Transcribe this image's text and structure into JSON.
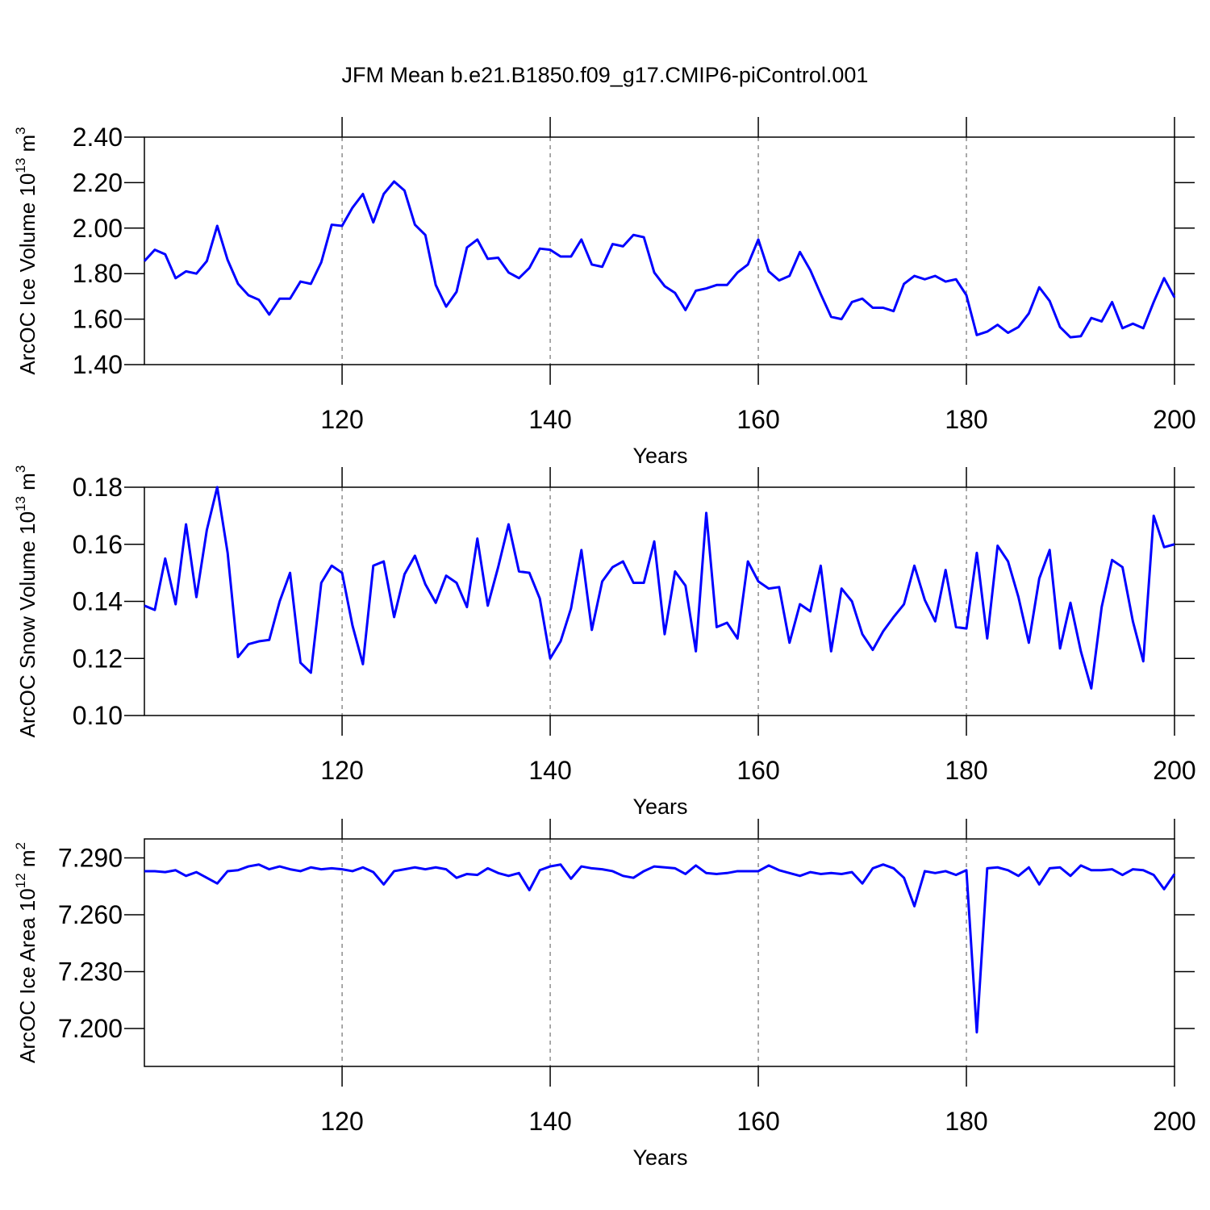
{
  "title": "JFM Mean b.e21.B1850.f09_g17.CMIP6-piControl.001",
  "chart_data": [
    {
      "type": "line",
      "xlabel": "Years",
      "ylabel": [
        "ArcOC Ice Volume 10",
        "13",
        " m",
        "3"
      ],
      "color": "#0000ff",
      "xgrid": true,
      "xlim": [
        101,
        200
      ],
      "xticks": [
        120,
        140,
        160,
        180,
        200
      ],
      "ylim": [
        1.4,
        2.4
      ],
      "yticks": [
        {
          "value": 1.4,
          "label": "1.40"
        },
        {
          "value": 1.6,
          "label": "1.60"
        },
        {
          "value": 1.8,
          "label": "1.80"
        },
        {
          "value": 2.0,
          "label": "2.00"
        },
        {
          "value": 2.2,
          "label": "2.20"
        },
        {
          "value": 2.4,
          "label": "2.40"
        }
      ],
      "x": [
        101,
        102,
        103,
        104,
        105,
        106,
        107,
        108,
        109,
        110,
        111,
        112,
        113,
        114,
        115,
        116,
        117,
        118,
        119,
        120,
        121,
        122,
        123,
        124,
        125,
        126,
        127,
        128,
        129,
        130,
        131,
        132,
        133,
        134,
        135,
        136,
        137,
        138,
        139,
        140,
        141,
        142,
        143,
        144,
        145,
        146,
        147,
        148,
        149,
        150,
        151,
        152,
        153,
        154,
        155,
        156,
        157,
        158,
        159,
        160,
        161,
        162,
        163,
        164,
        165,
        166,
        167,
        168,
        169,
        170,
        171,
        172,
        173,
        174,
        175,
        176,
        177,
        178,
        179,
        180,
        181,
        182,
        183,
        184,
        185,
        186,
        187,
        188,
        189,
        190,
        191,
        192,
        193,
        194,
        195,
        196,
        197,
        198,
        199,
        200
      ],
      "values": [
        1.855,
        1.905,
        1.885,
        1.78,
        1.81,
        1.8,
        1.855,
        2.01,
        1.86,
        1.755,
        1.705,
        1.685,
        1.62,
        1.69,
        1.69,
        1.765,
        1.755,
        1.85,
        2.015,
        2.01,
        2.09,
        2.15,
        2.025,
        2.15,
        2.205,
        2.165,
        2.015,
        1.97,
        1.75,
        1.655,
        1.72,
        1.915,
        1.95,
        1.865,
        1.87,
        1.805,
        1.78,
        1.825,
        1.91,
        1.905,
        1.875,
        1.875,
        1.95,
        1.84,
        1.83,
        1.93,
        1.92,
        1.97,
        1.96,
        1.805,
        1.745,
        1.715,
        1.64,
        1.725,
        1.735,
        1.75,
        1.75,
        1.805,
        1.84,
        1.95,
        1.81,
        1.77,
        1.79,
        1.895,
        1.815,
        1.71,
        1.61,
        1.6,
        1.675,
        1.69,
        1.65,
        1.65,
        1.635,
        1.755,
        1.79,
        1.775,
        1.79,
        1.765,
        1.775,
        1.705,
        1.53,
        1.545,
        1.575,
        1.54,
        1.565,
        1.625,
        1.74,
        1.68,
        1.565,
        1.52,
        1.525,
        1.605,
        1.59,
        1.675,
        1.56,
        1.58,
        1.56,
        1.675,
        1.78,
        1.695
      ]
    },
    {
      "type": "line",
      "xlabel": "Years",
      "ylabel": [
        "ArcOC Snow Volume 10",
        "13",
        " m",
        "3"
      ],
      "color": "#0000ff",
      "xgrid": true,
      "xlim": [
        101,
        200
      ],
      "xticks": [
        120,
        140,
        160,
        180,
        200
      ],
      "ylim": [
        0.1,
        0.18
      ],
      "yticks": [
        {
          "value": 0.1,
          "label": "0.10"
        },
        0.12,
        0.14,
        0.16,
        0.18
      ],
      "x": [
        101,
        102,
        103,
        104,
        105,
        106,
        107,
        108,
        109,
        110,
        111,
        112,
        113,
        114,
        115,
        116,
        117,
        118,
        119,
        120,
        121,
        122,
        123,
        124,
        125,
        126,
        127,
        128,
        129,
        130,
        131,
        132,
        133,
        134,
        135,
        136,
        137,
        138,
        139,
        140,
        141,
        142,
        143,
        144,
        145,
        146,
        147,
        148,
        149,
        150,
        151,
        152,
        153,
        154,
        155,
        156,
        157,
        158,
        159,
        160,
        161,
        162,
        163,
        164,
        165,
        166,
        167,
        168,
        169,
        170,
        171,
        172,
        173,
        174,
        175,
        176,
        177,
        178,
        179,
        180,
        181,
        182,
        183,
        184,
        185,
        186,
        187,
        188,
        189,
        190,
        191,
        192,
        193,
        194,
        195,
        196,
        197,
        198,
        199,
        200
      ],
      "values": [
        0.1385,
        0.137,
        0.155,
        0.139,
        0.167,
        0.1415,
        0.165,
        0.18,
        0.157,
        0.1205,
        0.125,
        0.126,
        0.1265,
        0.14,
        0.15,
        0.1185,
        0.115,
        0.1465,
        0.1525,
        0.15,
        0.1315,
        0.118,
        0.1525,
        0.154,
        0.1345,
        0.1495,
        0.156,
        0.146,
        0.1395,
        0.149,
        0.1465,
        0.138,
        0.162,
        0.1385,
        0.152,
        0.167,
        0.1505,
        0.15,
        0.141,
        0.12,
        0.126,
        0.1375,
        0.158,
        0.13,
        0.147,
        0.152,
        0.154,
        0.1465,
        0.1465,
        0.161,
        0.1285,
        0.1505,
        0.1455,
        0.1225,
        0.171,
        0.131,
        0.1325,
        0.127,
        0.154,
        0.147,
        0.1445,
        0.145,
        0.1255,
        0.139,
        0.1365,
        0.1525,
        0.1225,
        0.1445,
        0.14,
        0.1285,
        0.123,
        0.1295,
        0.1345,
        0.139,
        0.1525,
        0.1405,
        0.133,
        0.151,
        0.131,
        0.1305,
        0.157,
        0.127,
        0.1595,
        0.154,
        0.1415,
        0.1255,
        0.148,
        0.158,
        0.1235,
        0.1395,
        0.1225,
        0.1095,
        0.138,
        0.1545,
        0.152,
        0.133,
        0.119,
        0.17,
        0.159,
        0.16
      ]
    },
    {
      "type": "line",
      "xlabel": "Years",
      "ylabel": [
        "ArcOC Ice Area 10",
        "12",
        " m",
        "2"
      ],
      "color": "#0000ff",
      "xgrid": true,
      "xlim": [
        101,
        200
      ],
      "xticks": [
        120,
        140,
        160,
        180,
        200
      ],
      "ylim": [
        7.18,
        7.3
      ],
      "yticks": [
        {
          "value": 7.2,
          "label": "7.200"
        },
        {
          "value": 7.23,
          "label": "7.230"
        },
        {
          "value": 7.26,
          "label": "7.260"
        },
        {
          "value": 7.29,
          "label": "7.290"
        }
      ],
      "x": [
        101,
        102,
        103,
        104,
        105,
        106,
        107,
        108,
        109,
        110,
        111,
        112,
        113,
        114,
        115,
        116,
        117,
        118,
        119,
        120,
        121,
        122,
        123,
        124,
        125,
        126,
        127,
        128,
        129,
        130,
        131,
        132,
        133,
        134,
        135,
        136,
        137,
        138,
        139,
        140,
        141,
        142,
        143,
        144,
        145,
        146,
        147,
        148,
        149,
        150,
        151,
        152,
        153,
        154,
        155,
        156,
        157,
        158,
        159,
        160,
        161,
        162,
        163,
        164,
        165,
        166,
        167,
        168,
        169,
        170,
        171,
        172,
        173,
        174,
        175,
        176,
        177,
        178,
        179,
        180,
        181,
        182,
        183,
        184,
        185,
        186,
        187,
        188,
        189,
        190,
        191,
        192,
        193,
        194,
        195,
        196,
        197,
        198,
        199,
        200
      ],
      "values": [
        7.283,
        7.283,
        7.2825,
        7.2835,
        7.2805,
        7.2825,
        7.2795,
        7.2765,
        7.283,
        7.2835,
        7.2855,
        7.2865,
        7.284,
        7.2855,
        7.284,
        7.283,
        7.285,
        7.284,
        7.2845,
        7.284,
        7.283,
        7.285,
        7.2825,
        7.276,
        7.283,
        7.284,
        7.285,
        7.284,
        7.285,
        7.284,
        7.2795,
        7.2815,
        7.281,
        7.2845,
        7.282,
        7.2805,
        7.282,
        7.273,
        7.2835,
        7.2855,
        7.2865,
        7.279,
        7.2855,
        7.2845,
        7.284,
        7.283,
        7.2805,
        7.2795,
        7.283,
        7.2855,
        7.285,
        7.2845,
        7.2815,
        7.286,
        7.282,
        7.2815,
        7.282,
        7.283,
        7.283,
        7.283,
        7.286,
        7.2835,
        7.282,
        7.2805,
        7.2825,
        7.2815,
        7.282,
        7.2815,
        7.2825,
        7.2765,
        7.2845,
        7.2865,
        7.2845,
        7.2795,
        7.2645,
        7.283,
        7.282,
        7.283,
        7.281,
        7.2835,
        7.198,
        7.2845,
        7.285,
        7.2835,
        7.2805,
        7.285,
        7.276,
        7.2845,
        7.285,
        7.2805,
        7.286,
        7.2835,
        7.2835,
        7.284,
        7.281,
        7.284,
        7.2835,
        7.281,
        7.2735,
        7.2815
      ]
    }
  ]
}
